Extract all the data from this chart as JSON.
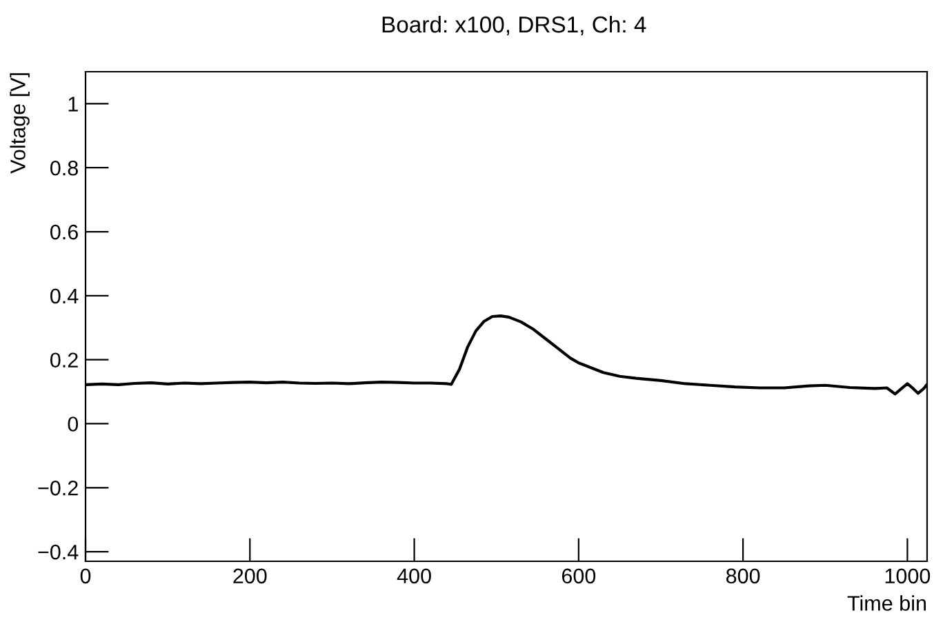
{
  "chart_data": {
    "type": "line",
    "title": "Board: x100, DRS1, Ch: 4",
    "xlabel": "Time bin",
    "ylabel": "Voltage [V]",
    "x": [
      0,
      20,
      40,
      60,
      80,
      100,
      120,
      140,
      160,
      180,
      200,
      220,
      240,
      260,
      280,
      300,
      320,
      340,
      360,
      380,
      400,
      420,
      440,
      445,
      455,
      465,
      475,
      485,
      495,
      505,
      515,
      530,
      545,
      560,
      575,
      590,
      600,
      615,
      630,
      650,
      670,
      700,
      730,
      760,
      790,
      820,
      850,
      880,
      900,
      930,
      960,
      975,
      985,
      993,
      1000,
      1007,
      1013,
      1020,
      1023
    ],
    "series": [
      {
        "color": "#000000",
        "values": [
          0.122,
          0.124,
          0.122,
          0.126,
          0.128,
          0.124,
          0.127,
          0.125,
          0.127,
          0.129,
          0.13,
          0.128,
          0.13,
          0.127,
          0.126,
          0.127,
          0.125,
          0.128,
          0.13,
          0.129,
          0.127,
          0.127,
          0.125,
          0.123,
          0.17,
          0.24,
          0.29,
          0.32,
          0.335,
          0.337,
          0.333,
          0.318,
          0.295,
          0.265,
          0.235,
          0.205,
          0.19,
          0.175,
          0.16,
          0.148,
          0.142,
          0.135,
          0.125,
          0.12,
          0.115,
          0.112,
          0.112,
          0.118,
          0.12,
          0.113,
          0.11,
          0.112,
          0.093,
          0.11,
          0.125,
          0.11,
          0.095,
          0.11,
          0.12
        ]
      }
    ],
    "xlim": [
      0,
      1024
    ],
    "ylim": [
      -0.43,
      1.1
    ],
    "xticks": [
      0,
      200,
      400,
      600,
      800,
      1000
    ],
    "yticks": [
      {
        "value": -0.4,
        "label": "−0.4"
      },
      {
        "value": -0.2,
        "label": "−0.2"
      },
      0,
      0.2,
      0.4,
      0.6,
      0.8,
      1
    ],
    "grid": false,
    "legend": false,
    "marker": "none",
    "line_style": "solid"
  }
}
